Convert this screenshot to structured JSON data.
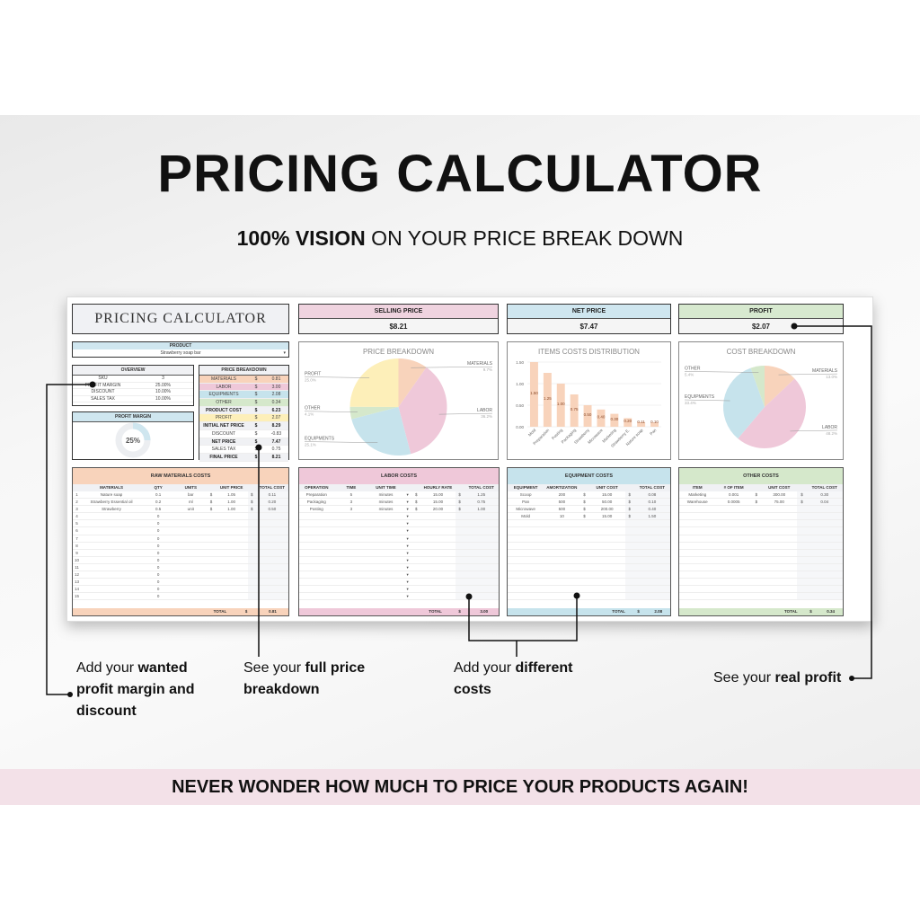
{
  "header": {
    "title": "PRICING CALCULATOR",
    "subtitle_bold": "100% VISION",
    "subtitle_rest": " ON YOUR PRICE BREAK DOWN"
  },
  "colors": {
    "materials": "#f8d3bb",
    "labor": "#efc8d9",
    "equipments": "#c6e3ec",
    "other": "#d5e8cb",
    "profit": "#fdefb9",
    "neutral": "#f0f1f4"
  },
  "sheet": {
    "title": "PRICING CALCULATOR",
    "product": {
      "label": "PRODUCT",
      "value": "Strawberry soap bar"
    },
    "overview": {
      "title": "OVERVIEW",
      "rows": [
        [
          "SKU",
          "3"
        ],
        [
          "PROFIT MARGIN",
          "25.00%"
        ],
        [
          "DISCOUNT",
          "10.00%"
        ],
        [
          "SALES TAX",
          "10.00%"
        ]
      ]
    },
    "profit_margin": {
      "title": "PROFIT MARGIN",
      "value": "25%",
      "fraction": 0.25
    },
    "price_breakdown": {
      "title": "PRICE BREAKDOWN",
      "rows": [
        {
          "label": "MATERIALS",
          "cur": "$",
          "value": "0.81",
          "color": "#f8d3bb"
        },
        {
          "label": "LABOR",
          "cur": "$",
          "value": "3.00",
          "color": "#efc8d9"
        },
        {
          "label": "EQUIPMENTS",
          "cur": "$",
          "value": "2.08",
          "color": "#c6e3ec"
        },
        {
          "label": "OTHER",
          "cur": "$",
          "value": "0.34",
          "color": "#d5e8cb"
        },
        {
          "label": "PRODUCT COST",
          "cur": "$",
          "value": "6.23",
          "color": "#f0f1f4",
          "bold": true
        },
        {
          "label": "PROFIT",
          "cur": "$",
          "value": "2.07",
          "color": "#fdefb9"
        },
        {
          "label": "INITIAL NET PRICE",
          "cur": "$",
          "value": "8.29",
          "color": "#f0f1f4",
          "bold": true
        },
        {
          "label": "DISCOUNT",
          "cur": "$",
          "value": "-0.83",
          "color": "#ffffff"
        },
        {
          "label": "NET PRICE",
          "cur": "$",
          "value": "7.47",
          "color": "#f0f1f4",
          "bold": true
        },
        {
          "label": "SALES TAX",
          "cur": "$",
          "value": "0.75",
          "color": "#ffffff"
        },
        {
          "label": "FINAL PRICE",
          "cur": "$",
          "value": "8.21",
          "color": "#f0f1f4",
          "bold": true
        }
      ]
    },
    "kpis": [
      {
        "label": "SELLING PRICE",
        "value": "$8.21",
        "color": "#efd3df"
      },
      {
        "label": "NET PRICE",
        "value": "$7.47",
        "color": "#cfe6ef"
      },
      {
        "label": "PROFIT",
        "value": "$2.07",
        "color": "#d7e9cf"
      }
    ],
    "tables": [
      {
        "title": "RAW MATERIALS COSTS",
        "color": "#f8d3bb",
        "columns": [
          "",
          "MATERIALS",
          "QTY",
          "UNITS",
          "",
          "UNIT PRICE",
          "",
          "TOTAL COST"
        ],
        "rows": [
          [
            "1",
            "Nature soap",
            "0.1",
            "bar",
            "$",
            "1.05",
            "$",
            "0.11"
          ],
          [
            "2",
            "Strawberry Essential oil",
            "0.2",
            "ml",
            "$",
            "1.00",
            "$",
            "0.20"
          ],
          [
            "3",
            "Strawberry",
            "0.5",
            "unit",
            "$",
            "1.00",
            "$",
            "0.50"
          ],
          [
            "4",
            "",
            "0",
            "",
            "",
            "",
            "",
            ""
          ],
          [
            "5",
            "",
            "0",
            "",
            "",
            "",
            "",
            ""
          ],
          [
            "6",
            "",
            "0",
            "",
            "",
            "",
            "",
            ""
          ],
          [
            "7",
            "",
            "0",
            "",
            "",
            "",
            "",
            ""
          ],
          [
            "8",
            "",
            "0",
            "",
            "",
            "",
            "",
            ""
          ],
          [
            "9",
            "",
            "0",
            "",
            "",
            "",
            "",
            ""
          ],
          [
            "10",
            "",
            "0",
            "",
            "",
            "",
            "",
            ""
          ],
          [
            "11",
            "",
            "0",
            "",
            "",
            "",
            "",
            ""
          ],
          [
            "12",
            "",
            "0",
            "",
            "",
            "",
            "",
            ""
          ],
          [
            "13",
            "",
            "0",
            "",
            "",
            "",
            "",
            ""
          ],
          [
            "14",
            "",
            "0",
            "",
            "",
            "",
            "",
            ""
          ],
          [
            "15",
            "",
            "0",
            "",
            "",
            "",
            "",
            ""
          ]
        ],
        "total_label": "TOTAL",
        "total_cur": "$",
        "total": "0.81"
      },
      {
        "title": "LABOR COSTS",
        "color": "#efc8d9",
        "columns": [
          "OPERATION",
          "TIME",
          "UNIT TIME",
          "",
          "",
          "HOURLY RATE",
          "",
          "TOTAL COST"
        ],
        "rows": [
          [
            "Preparation",
            "5",
            "minutes",
            "▾",
            "$",
            "15.00",
            "$",
            "1.25"
          ],
          [
            "Packaging",
            "3",
            "minutes",
            "▾",
            "$",
            "15.00",
            "$",
            "0.75"
          ],
          [
            "Posting",
            "3",
            "minutes",
            "▾",
            "$",
            "20.00",
            "$",
            "1.00"
          ],
          [
            "",
            "",
            "",
            "▾",
            "",
            "",
            "",
            ""
          ],
          [
            "",
            "",
            "",
            "▾",
            "",
            "",
            "",
            ""
          ],
          [
            "",
            "",
            "",
            "▾",
            "",
            "",
            "",
            ""
          ],
          [
            "",
            "",
            "",
            "▾",
            "",
            "",
            "",
            ""
          ],
          [
            "",
            "",
            "",
            "▾",
            "",
            "",
            "",
            ""
          ],
          [
            "",
            "",
            "",
            "▾",
            "",
            "",
            "",
            ""
          ],
          [
            "",
            "",
            "",
            "▾",
            "",
            "",
            "",
            ""
          ],
          [
            "",
            "",
            "",
            "▾",
            "",
            "",
            "",
            ""
          ],
          [
            "",
            "",
            "",
            "▾",
            "",
            "",
            "",
            ""
          ],
          [
            "",
            "",
            "",
            "▾",
            "",
            "",
            "",
            ""
          ],
          [
            "",
            "",
            "",
            "▾",
            "",
            "",
            "",
            ""
          ],
          [
            "",
            "",
            "",
            "▾",
            "",
            "",
            "",
            ""
          ]
        ],
        "total_label": "TOTAL",
        "total_cur": "$",
        "total": "3.00"
      },
      {
        "title": "EQUIPMENT COSTS",
        "color": "#c6e3ec",
        "columns": [
          "EQUIPMENT",
          "AMORTIZATION",
          "",
          "UNIT COST",
          "",
          "TOTAL COST"
        ],
        "rows": [
          [
            "Scoop",
            "200",
            "$",
            "15.00",
            "$",
            "0.08"
          ],
          [
            "Pan",
            "500",
            "$",
            "50.00",
            "$",
            "0.10"
          ],
          [
            "Microwave",
            "500",
            "$",
            "200.00",
            "$",
            "0.40"
          ],
          [
            "Mold",
            "10",
            "$",
            "15.00",
            "$",
            "1.50"
          ]
        ],
        "total_label": "TOTAL",
        "total_cur": "$",
        "total": "2.08"
      },
      {
        "title": "OTHER COSTS",
        "color": "#d5e8cb",
        "columns": [
          "ITEM",
          "# OF ITEM",
          "",
          "UNIT COST",
          "",
          "TOTAL COST"
        ],
        "rows": [
          [
            "Marketing",
            "0.001",
            "$",
            "300.00",
            "$",
            "0.30"
          ],
          [
            "Warehouse",
            "0.0005",
            "$",
            "75.00",
            "$",
            "0.04"
          ]
        ],
        "total_label": "TOTAL",
        "total_cur": "$",
        "total": "0.34"
      }
    ]
  },
  "chart_data": [
    {
      "type": "pie",
      "title": "PRICE BREAKDOWN",
      "slices": [
        {
          "label": "MATERIALS",
          "pct_label": "9.7%",
          "value": 0.81,
          "color": "#f8d3bb"
        },
        {
          "label": "LABOR",
          "pct_label": "36.2%",
          "value": 3.0,
          "color": "#efc8d9"
        },
        {
          "label": "EQUIPMENTS",
          "pct_label": "25.1%",
          "value": 2.08,
          "color": "#c6e3ec"
        },
        {
          "label": "OTHER",
          "pct_label": "4.1%",
          "value": 0.34,
          "color": "#d5e8cb"
        },
        {
          "label": "PROFIT",
          "pct_label": "25.0%",
          "value": 2.07,
          "color": "#fdefb9"
        }
      ]
    },
    {
      "type": "bar",
      "title": "ITEMS COSTS DISTRIBUTION",
      "categories": [
        "Mold",
        "Preparation",
        "Posting",
        "Packaging",
        "Strawberry",
        "Microwave",
        "Marketing",
        "Strawberry E.",
        "Nature soap",
        "Pan"
      ],
      "values": [
        1.5,
        1.25,
        1.0,
        0.75,
        0.5,
        0.4,
        0.3,
        0.2,
        0.11,
        0.1
      ],
      "data_labels": [
        "1.50",
        "1.25",
        "1.00",
        "0.75",
        "0.50",
        "0.40",
        "0.30",
        "0.20",
        "0.11",
        "0.10"
      ],
      "yticks": [
        "0.00",
        "0.50",
        "1.00",
        "1.50"
      ],
      "ylim": [
        0,
        1.5
      ],
      "grid": true,
      "color": "#f8d3bb"
    },
    {
      "type": "pie",
      "title": "COST BREAKDOWN",
      "slices": [
        {
          "label": "MATERIALS",
          "pct_label": "13.0%",
          "value": 0.81,
          "color": "#f8d3bb"
        },
        {
          "label": "LABOR",
          "pct_label": "48.2%",
          "value": 3.0,
          "color": "#efc8d9"
        },
        {
          "label": "EQUIPMENTS",
          "pct_label": "33.4%",
          "value": 2.08,
          "color": "#c6e3ec"
        },
        {
          "label": "OTHER",
          "pct_label": "5.4%",
          "value": 0.34,
          "color": "#d5e8cb"
        }
      ]
    }
  ],
  "callouts": [
    {
      "pre": "Add your ",
      "bold": "wanted profit margin and discount",
      "post": ""
    },
    {
      "pre": "See your ",
      "bold": "full price breakdown",
      "post": ""
    },
    {
      "pre": "Add your ",
      "bold": "different costs",
      "post": ""
    },
    {
      "pre": "See your ",
      "bold": "real profit",
      "post": ""
    }
  ],
  "banner": "NEVER WONDER HOW MUCH TO PRICE YOUR PRODUCTS AGAIN!"
}
